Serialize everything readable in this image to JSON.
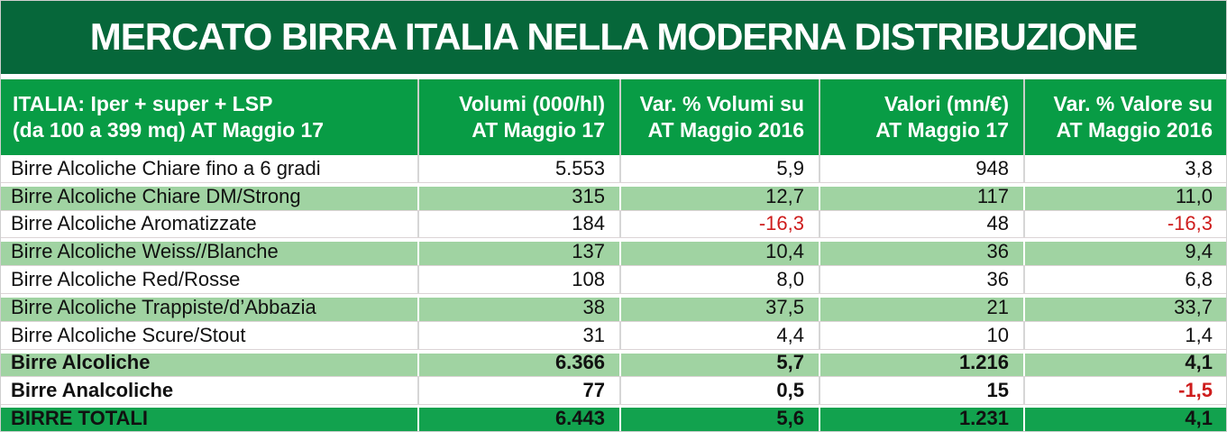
{
  "title": "MERCATO BIRRA ITALIA NELLA MODERNA DISTRIBUZIONE",
  "colors": {
    "title_bg": "#06673a",
    "header_bg": "#089c45",
    "total_bg": "#12a24e",
    "row_alt_bg": "#a0d3a2",
    "negative": "#ce1c1c"
  },
  "header": {
    "market": {
      "line1": "ITALIA: Iper + super + LSP",
      "line2": "(da 100 a 399 mq) AT Maggio 17"
    },
    "volumes": {
      "line1": "Volumi (000/hl)",
      "line2": "AT Maggio 17"
    },
    "volumes_var": {
      "line1": "Var. % Volumi su",
      "line2": "AT Maggio 2016"
    },
    "values": {
      "line1": "Valori (mn/€)",
      "line2": "AT Maggio 17"
    },
    "values_var": {
      "line1": "Var. % Valore su",
      "line2": "AT Maggio 2016"
    }
  },
  "rows": [
    {
      "label": "Birre Alcoliche Chiare fino a 6 gradi",
      "volumi": "5.553",
      "var_volumi": "5,9",
      "valori": "948",
      "var_valore": "3,8"
    },
    {
      "label": "Birre Alcoliche Chiare DM/Strong",
      "volumi": "315",
      "var_volumi": "12,7",
      "valori": "117",
      "var_valore": "11,0"
    },
    {
      "label": "Birre Alcoliche Aromatizzate",
      "volumi": "184",
      "var_volumi": "-16,3",
      "valori": "48",
      "var_valore": "-16,3"
    },
    {
      "label": "Birre Alcoliche Weiss//Blanche",
      "volumi": "137",
      "var_volumi": "10,4",
      "valori": "36",
      "var_valore": "9,4"
    },
    {
      "label": "Birre Alcoliche Red/Rosse",
      "volumi": "108",
      "var_volumi": "8,0",
      "valori": "36",
      "var_valore": "6,8"
    },
    {
      "label": "Birre Alcoliche Trappiste/d’Abbazia",
      "volumi": "38",
      "var_volumi": "37,5",
      "valori": "21",
      "var_valore": "33,7"
    },
    {
      "label": "Birre Alcoliche Scure/Stout",
      "volumi": "31",
      "var_volumi": "4,4",
      "valori": "10",
      "var_valore": "1,4"
    },
    {
      "label": "Birre Alcoliche",
      "volumi": "6.366",
      "var_volumi": "5,7",
      "valori": "1.216",
      "var_valore": "4,1"
    },
    {
      "label": "Birre Analcoliche",
      "volumi": "77",
      "var_volumi": "0,5",
      "valori": "15",
      "var_valore": "-1,5"
    },
    {
      "label": "BIRRE TOTALI",
      "volumi": "6.443",
      "var_volumi": "5,6",
      "valori": "1.231",
      "var_valore": "4,1"
    }
  ],
  "chart_data": {
    "type": "table",
    "title": "MERCATO BIRRA ITALIA NELLA MODERNA DISTRIBUZIONE",
    "columns": [
      "ITALIA: Iper + super + LSP (da 100 a 399 mq) AT Maggio 17",
      "Volumi (000/hl) AT Maggio 17",
      "Var. % Volumi su AT Maggio 2016",
      "Valori (mn/€) AT Maggio 17",
      "Var. % Valore su AT Maggio 2016"
    ],
    "rows": [
      [
        "Birre Alcoliche Chiare fino a 6 gradi",
        5553,
        5.9,
        948,
        3.8
      ],
      [
        "Birre Alcoliche Chiare DM/Strong",
        315,
        12.7,
        117,
        11.0
      ],
      [
        "Birre Alcoliche Aromatizzate",
        184,
        -16.3,
        48,
        -16.3
      ],
      [
        "Birre Alcoliche Weiss//Blanche",
        137,
        10.4,
        36,
        9.4
      ],
      [
        "Birre Alcoliche Red/Rosse",
        108,
        8.0,
        36,
        6.8
      ],
      [
        "Birre Alcoliche Trappiste/d’Abbazia",
        38,
        37.5,
        21,
        33.7
      ],
      [
        "Birre Alcoliche Scure/Stout",
        31,
        4.4,
        10,
        1.4
      ],
      [
        "Birre Alcoliche",
        6366,
        5.7,
        1216,
        4.1
      ],
      [
        "Birre Analcoliche",
        77,
        0.5,
        15,
        -1.5
      ],
      [
        "BIRRE TOTALI",
        6443,
        5.6,
        1231,
        4.1
      ]
    ]
  }
}
